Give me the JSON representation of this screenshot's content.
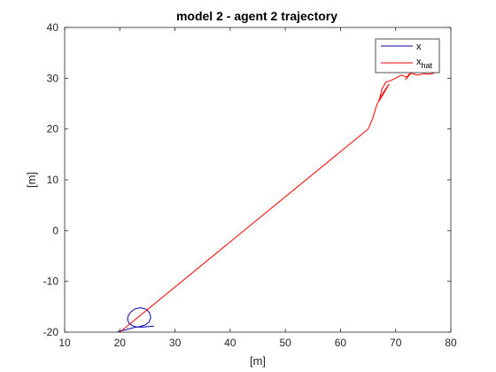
{
  "chart_data": {
    "type": "line",
    "title": "model 2 - agent 2 trajectory",
    "xlabel": "[m]",
    "ylabel": "[m]",
    "xlim": [
      10,
      80
    ],
    "ylim": [
      -20,
      40
    ],
    "xticks": [
      10,
      20,
      30,
      40,
      50,
      60,
      70,
      80
    ],
    "yticks": [
      -20,
      -10,
      0,
      10,
      20,
      30,
      40
    ],
    "xtick_labels": [
      "10",
      "20",
      "30",
      "40",
      "50",
      "60",
      "70",
      "80"
    ],
    "ytick_labels": [
      "-20",
      "-10",
      "0",
      "10",
      "20",
      "30",
      "40"
    ],
    "legend": {
      "position": "top-right",
      "entries": [
        {
          "label": "x",
          "color": "#0000aa"
        },
        {
          "label": "x",
          "subscript": "hat",
          "color": "#ff0000"
        }
      ]
    },
    "series": [
      {
        "name": "x",
        "color": "#0000aa",
        "x": [
          19.6,
          20.5,
          21.2,
          21.8,
          22.6,
          23.6,
          24.6,
          25.3,
          25.6,
          25.4,
          24.8,
          23.8,
          22.8,
          22.0,
          21.5,
          21.4,
          21.7,
          22.4,
          23.2,
          24.2,
          25.2,
          26.2
        ],
        "y": [
          -19.9,
          -19.7,
          -19.5,
          -19.3,
          -19.1,
          -18.9,
          -18.6,
          -18.0,
          -17.1,
          -16.2,
          -15.5,
          -15.2,
          -15.4,
          -16.0,
          -16.8,
          -17.6,
          -18.3,
          -18.8,
          -19.0,
          -19.0,
          -18.9,
          -18.8
        ]
      },
      {
        "name": "x_hat",
        "color": "#ff0000",
        "x": [
          20.0,
          65.0,
          65.8,
          66.5,
          67.2,
          68.0,
          68.8,
          67.0,
          67.5,
          68.2,
          69.0,
          70.0,
          71.0,
          72.0,
          72.5,
          71.8,
          72.8,
          74.0,
          75.0,
          76.0,
          77.0
        ],
        "y": [
          -20.0,
          20.0,
          22.0,
          24.5,
          26.2,
          27.6,
          28.8,
          25.5,
          27.8,
          29.2,
          29.5,
          30.0,
          30.6,
          30.2,
          30.9,
          29.8,
          31.0,
          30.6,
          30.9,
          30.8,
          31.0
        ]
      }
    ]
  }
}
